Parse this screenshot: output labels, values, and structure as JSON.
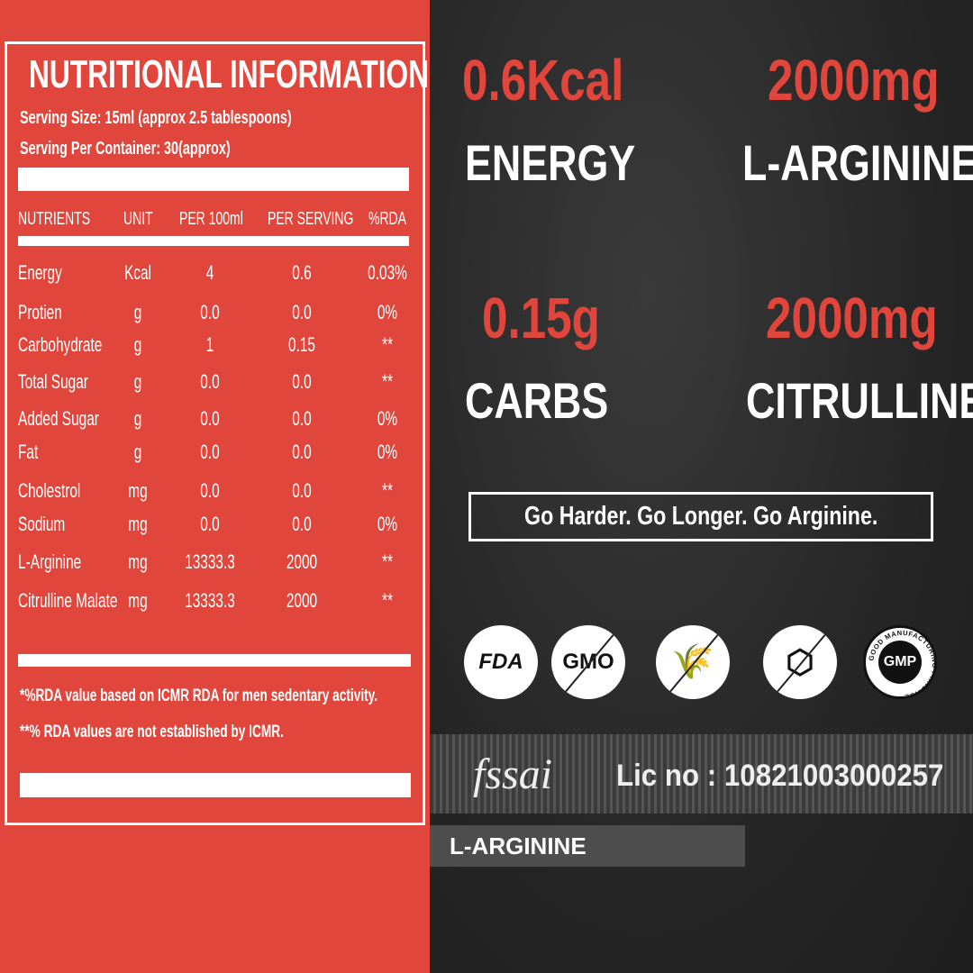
{
  "nutrition": {
    "title": "NUTRITIONAL INFORMATION",
    "serving_size": "Serving Size: 15ml (approx 2.5 tablespoons)",
    "servings_per_container": "Serving Per Container: 30(approx)",
    "headers": [
      "NUTRIENTS",
      "UNIT",
      "PER 100ml",
      "PER SERVING",
      "%RDA"
    ],
    "rows": [
      [
        "Energy",
        "Kcal",
        "4",
        "0.6",
        "0.03%"
      ],
      [
        "Protien",
        "g",
        "0.0",
        "0.0",
        "0%"
      ],
      [
        "Carbohydrate",
        "g",
        "1",
        "0.15",
        "**"
      ],
      [
        "Total Sugar",
        "g",
        "0.0",
        "0.0",
        "**"
      ],
      [
        "Added Sugar",
        "g",
        "0.0",
        "0.0",
        "0%"
      ],
      [
        "Fat",
        "g",
        "0.0",
        "0.0",
        "0%"
      ],
      [
        "Cholestrol",
        "mg",
        "0.0",
        "0.0",
        "**"
      ],
      [
        "Sodium",
        "mg",
        "0.0",
        "0.0",
        "0%"
      ],
      [
        "L-Arginine",
        "mg",
        "13333.3",
        "2000",
        "**"
      ],
      [
        "Citrulline Malate",
        "mg",
        "13333.3",
        "2000",
        "**"
      ]
    ],
    "note1": "*%RDA value based on ICMR RDA for men sedentary activity.",
    "note2": "**% RDA values are not established by ICMR."
  },
  "highlights": [
    {
      "value": "0.6Kcal",
      "label": "ENERGY"
    },
    {
      "value": "2000mg",
      "label": "L-ARGININE"
    },
    {
      "value": "0.15g",
      "label": "CARBS"
    },
    {
      "value": "2000mg",
      "label": "CITRULLINE"
    }
  ],
  "tagline": "Go Harder. Go Longer. Go Arginine.",
  "badges": {
    "fda": "FDA",
    "gmo": "GMO",
    "gluten": "gluten-free-icon",
    "sugar": "sugar-free-icon",
    "gmp": "GMP",
    "gmp_ring": "GOOD MANUFACTURING PRACTICE"
  },
  "fssai": {
    "logo": "fssai",
    "license": "Lic no : 10821003000257"
  },
  "product": "L-ARGININE",
  "colors": {
    "accent": "#e1463c",
    "dark": "#262626"
  }
}
